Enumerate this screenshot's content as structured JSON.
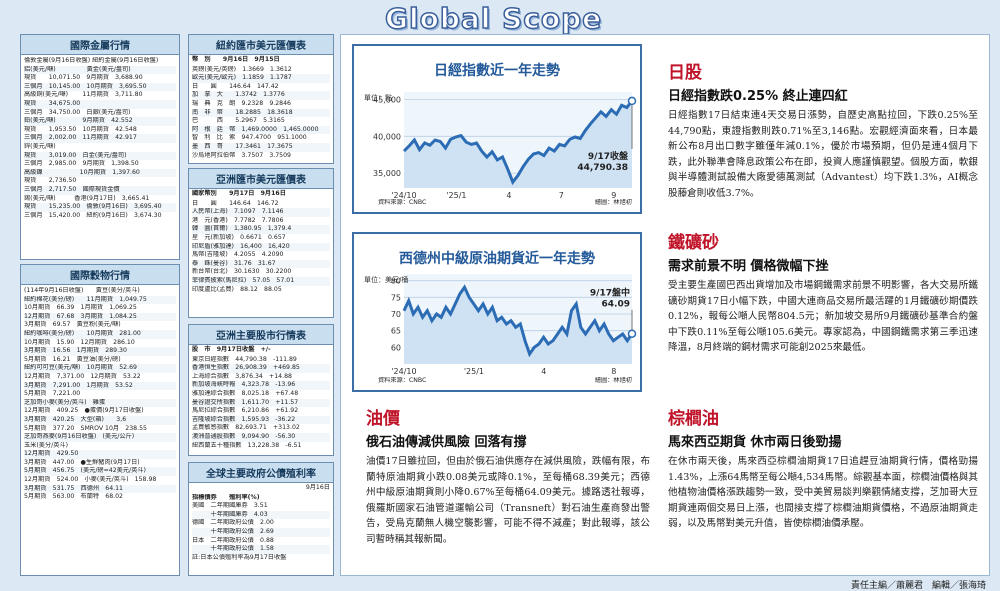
{
  "masthead": "Global Scope",
  "metals": {
    "title": "國際金屬行情",
    "rows": [
      "倫敦金屬(9月16日收盤) 紐約金屬(9月16日收盤)",
      "鋁(美元/噸)　　　　　黃金(美元/盎司)",
      "現貨　　10,071.50　9月期貨　3,688.90",
      "三個月　10,145.00　10月期貨　3,695.50",
      "高級銅(美元/噸)　　 11月期貨　3,711.80",
      "現貨　　34,675.00",
      "三個月　34,750.00　白銀(美元/盎司)",
      "鉛(美元/噸)　　　　 9月期貨　42.552",
      "現貨　　1,953.50　10月期貨　42.548",
      "三個月　2,002.00　11月期貨　42.917",
      "鋅(美元/噸)",
      "現貨　　3,019.00　白金(美元/盎司)",
      "三個月　2,985.00　9月期貨　1,398.50",
      "高級鎳　　　　　　10月期貨　1,397.60",
      "現貨　　2,736.50",
      "三個月　2,717.50　國際現貨金價",
      "錫(美元/噸)　　　香港(9月17日)　3,665.41",
      "現貨　　15,235.00　倫敦(9月16日)　3,695.40",
      "三個月　15,420.00　紐約(9月16日)　3,674.30"
    ]
  },
  "grains": {
    "title": "國際穀物行情",
    "rows": [
      "(114年9月16日收盤)　　黃豆(美分/英斗)",
      "紐約棉花(美分/磅)　　11月期貨　1,049.75",
      "10月期貨　66.39　1月期貨　1,069.25",
      "12月期貨　67.68　3月期貨　1,084.25",
      "3月期貨　69.57　黃豆粉(美元/噸)",
      "紐約咖啡(美分/磅)　　10月期貨　281.00",
      "10月期貨　15.90　12月期貨　286.10",
      "3月期貨　16.56　1月期貨　289.30",
      "5月期貨　16.21　黃豆油(美分/磅)",
      "紐約可可豆(美元/噸)　10月期貨　52.69",
      "12月期貨　7,371.00　12月期貨　53.22",
      "3月期貨　7,291.00　1月期貨　53.52",
      "5月期貨　7,221.00",
      "芝加哥小麥(美分/英斗)　雞蛋",
      "12月期貨　409.25　●蛋價(9月17日收盤)",
      "3月期貨　420.25　大型(箱)　　3,6",
      "5月期貨　377.20　SMROV 10月　238.55",
      "芝加哥燕麥(9月16日收盤)　(美元/公斤)",
      "玉米(美分/英斗)",
      "12月期貨　429.50",
      "3月期貨　447.00　●生鮮豬肉(9月17日)",
      "5月期貨　456.75　(美元/磅=42美元/英斗)",
      "12月期貨　524.00　小麥(美元/英斗)　158.98",
      "3月期貨　531.75　西德州　64.11",
      "5月期貨　563.00　布蘭特　68.02"
    ]
  },
  "forex_usd": {
    "title": "紐約匯市美元匯價表",
    "header": "幣　別　　9月16日　9月15日",
    "rows": [
      "英鎊(美元/英鎊)　1.3669　1.3612",
      "歐元(美元/歐元)　1.1859　1.1787",
      "日　　圓　　146.64　147.42",
      "加　拿　大　　1.3742　1.3776",
      "瑞　典　克　朗　9.2328　9.2846",
      "南　非　幣　　18.2885　18.3618",
      "巴　　　西　　5.2967　5.3165",
      "阿　根　廷　幣　1,469.0000　1,465.0000",
      "智　利　比　索　947.4700　951.1000",
      "墨　西　哥　　17.3461　17.3675",
      "沙烏地阿拉伯幣　3.7507　3.7509"
    ]
  },
  "forex_asia": {
    "title": "亞洲匯市美元匯價表",
    "header": "國家幣別　　9月17日　9月16日",
    "rows": [
      "日　　圓　　146.64　146.72",
      "人民幣(上海)　7.1097　7.1146",
      "港　元(香港)　7.7782　7.7806",
      "韓　圜(首爾)　1,380.95　1,379.4",
      "星　元(新加坡)　0.6671　0.657",
      "印尼盾(雅加達)　16,400　16,420",
      "馬幣(吉隆坡)　4.2055　4.2090",
      "泰　銖(曼谷)　31.76　31.67",
      "新台幣(台北)　30.1630　30.2200",
      "菲律賓披索(馬尼拉)　57.05　57.01",
      "印度盧比(孟買)　88.12　88.05"
    ]
  },
  "asia_stocks": {
    "title": "亞洲主要股市行情表",
    "header": "股　市　9月17日收盤　+/-",
    "rows": [
      "東京日經指數　44,790.38　-111.89",
      "香港恒生指數　26,908.39　+469.85",
      "上海綜合指數　3,876.34　+14.88",
      "新加坡海峽時報　4,323.78　-13.96",
      "雅加達綜合指數　8,025.18　+67.48",
      "曼谷證交所指數　1,611.70　+11.57",
      "馬尼拉綜合指數　6,210.86　+61.92",
      "吉隆坡綜合指數　1,595.93　-36.22",
      "孟買敏感指數　82,693.71　+313.02",
      "澳洲普通股指數　9,094.90　-56.30",
      "紐西蘭五十種指數　13,228.38　-6.51"
    ]
  },
  "bonds": {
    "title": "全球主要政府公債殖利率",
    "date": "9月16日",
    "header": "指標債券　　殖利率(%)",
    "rows": [
      "美國　二年期國庫券　3.51",
      "　　　十年期國庫券　4.03",
      "德國　二年期政府公債　2.00",
      "　　　十年期政府公債　2.69",
      "日本　二年期政府公債　0.88",
      "　　　十年期政府公債　1.58"
    ],
    "note": "註:日本公債殖利率為9月17日收盤"
  },
  "chart1": {
    "title": "日經指數近一年走勢",
    "y_unit": "單位：點",
    "callout_date": "9/17收盤",
    "callout_value": "44,790.38",
    "source": "資料來源：CNBC",
    "credit": "繪圖：林旭初"
  },
  "chart2": {
    "title": "西德州中級原油期貨近一年走勢",
    "y_unit": "單位：美元/桶",
    "callout_date": "9/17盤中",
    "callout_value": "64.09",
    "source": "資料來源：CNBC",
    "credit": "繪圖：林旭初"
  },
  "chart_data": [
    {
      "type": "line",
      "title": "日經指數近一年走勢",
      "ylabel": "單位：點",
      "ylim": [
        33000,
        46000
      ],
      "yticks": [
        35000,
        40000,
        45000
      ],
      "xticks": [
        "'24/10",
        "'25/1",
        "4",
        "7",
        "9"
      ],
      "y": [
        38000,
        38700,
        39500,
        38200,
        39100,
        38800,
        39500,
        39300,
        38400,
        39600,
        39900,
        40100,
        39200,
        38900,
        39100,
        38000,
        37200,
        37900,
        36800,
        37200,
        35600,
        33800,
        34700,
        35900,
        36900,
        37600,
        37800,
        37400,
        38400,
        38000,
        38900,
        38700,
        39600,
        39900,
        39700,
        40800,
        41700,
        42500,
        43300,
        42700,
        43600,
        43000,
        44200,
        43900,
        44791
      ]
    },
    {
      "type": "line",
      "title": "西德州中級原油期貨近一年走勢",
      "ylabel": "單位：美元/桶",
      "ylim": [
        55,
        82
      ],
      "yticks": [
        60,
        65,
        70,
        75,
        80
      ],
      "xticks": [
        "'24/10",
        "'25/1",
        "4",
        "8"
      ],
      "y": [
        71,
        74,
        70,
        72,
        69,
        71,
        68,
        70,
        69,
        72,
        70,
        73,
        76,
        78,
        75,
        73,
        71,
        73,
        70,
        72,
        68,
        69,
        67,
        68,
        66,
        67,
        62,
        58,
        60,
        61,
        63,
        61,
        62,
        64,
        66,
        64,
        71,
        73,
        66,
        64,
        66,
        68,
        65,
        67,
        64,
        62,
        63,
        64,
        62,
        64.09
      ]
    }
  ],
  "articles": [
    {
      "section": "日股",
      "headline": "日經指數跌0.25% 終止連四紅",
      "body": "日經指數17日結束連4天交易日漲勢，自歷史高點拉回，下跌0.25%至44,790點，東證指數則跌0.71%至3,146點。宏觀經濟面來看，日本最新公布8月出口數字雖僅年減0.1%，優於市場預期，但仍是連4個月下跌，此外聯準會降息政策公布在即，投資人應謹慎觀望。個股方面，軟銀與半導體測試設備大廠愛德萬測試（Advantest）均下跌1.3%，AI概念股藤倉則收低3.7%。"
    },
    {
      "section": "鐵礦砂",
      "headline": "需求前景不明 價格微幅下挫",
      "body": "受主要生產國巴西出貨增加及市場鋼鐵需求前景不明影響，各大交易所鐵礦砂期貨17日小幅下跌，中國大連商品交易所最活躍的1月鐵礦砂期價跌0.12%，報每公噸人民幣804.5元；新加坡交易所9月鐵礦砂基準合約盤中下跌0.11%至每公噸105.6美元。專家認為，中國鋼鐵需求第三季迅速降溫，8月終端的鋼材需求可能創2025來最低。"
    },
    {
      "section": "油價",
      "headline": "俄石油傳減供風險 回落有撐",
      "body": "油價17日雖拉回，但由於俄石油供應存在減供風險，跌幅有限，布蘭特原油期貨小跌0.08美元或降0.1%，至每桶68.39美元；西德州中級原油期貨則小降0.67%至每桶64.09美元。據路透社報導，俄羅斯國家石油管道運輸公司（Transneft）對石油生產商發出警告，受烏克蘭無人機空襲影響，可能不得不減產；對此報導，該公司暫時稱其報新聞。"
    },
    {
      "section": "棕櫚油",
      "headline": "馬來西亞期貨 休市兩日後勁揚",
      "body": "在休市兩天後，馬來西亞棕櫚油期貨17日追趕豆油期貨行情，價格勁揚1.43%，上漲64馬幣至每公噸4,534馬幣。綜觀基本面，棕櫚油價格與其他植物油價格漲跌趨勢一致，受中美貿易談判樂觀情緒支撐，芝加哥大豆期貨連兩個交易日上漲，也間接支撐了棕櫚油期貨價格，不過原油期貨走弱，以及馬幣對美元升值，皆使棕櫚油價承壓。"
    }
  ],
  "footer": "責任主編／蕭麗君　編輯／張海琦"
}
